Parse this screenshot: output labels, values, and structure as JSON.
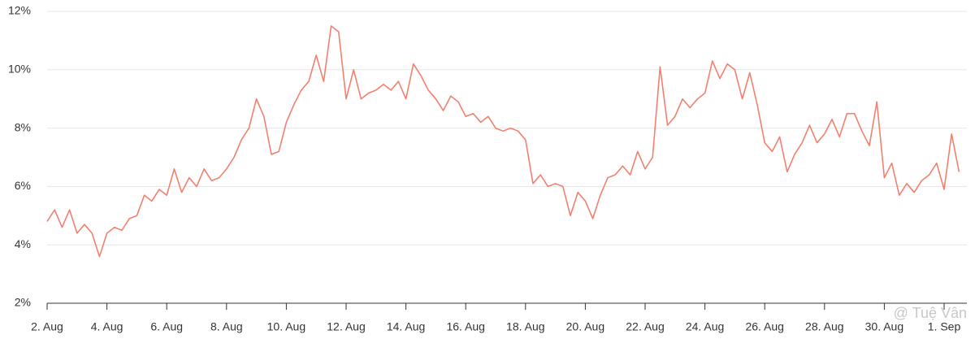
{
  "chart_data": {
    "type": "line",
    "categories": [
      "2. Aug",
      null,
      null,
      null,
      null,
      null,
      null,
      null,
      "4. Aug",
      null,
      null,
      null,
      null,
      null,
      null,
      null,
      "6. Aug",
      null,
      null,
      null,
      null,
      null,
      null,
      null,
      "8. Aug",
      null,
      null,
      null,
      null,
      null,
      null,
      null,
      "10. Aug",
      null,
      null,
      null,
      null,
      null,
      null,
      null,
      "12. Aug",
      null,
      null,
      null,
      null,
      null,
      null,
      null,
      "14. Aug",
      null,
      null,
      null,
      null,
      null,
      null,
      null,
      "16. Aug",
      null,
      null,
      null,
      null,
      null,
      null,
      null,
      "18. Aug",
      null,
      null,
      null,
      null,
      null,
      null,
      null,
      "20. Aug",
      null,
      null,
      null,
      null,
      null,
      null,
      null,
      "22. Aug",
      null,
      null,
      null,
      null,
      null,
      null,
      null,
      "24. Aug",
      null,
      null,
      null,
      null,
      null,
      null,
      null,
      "26. Aug",
      null,
      null,
      null,
      null,
      null,
      null,
      null,
      "28. Aug",
      null,
      null,
      null,
      null,
      null,
      null,
      null,
      "30. Aug",
      null,
      null,
      null,
      null,
      null,
      null,
      null,
      "1. Sep",
      null,
      null
    ],
    "values": [
      4.8,
      5.2,
      4.6,
      5.2,
      4.4,
      4.7,
      4.4,
      3.6,
      4.4,
      4.6,
      4.5,
      4.9,
      5.0,
      5.7,
      5.5,
      5.9,
      5.7,
      6.6,
      5.8,
      6.3,
      6.0,
      6.6,
      6.2,
      6.3,
      6.6,
      7.0,
      7.6,
      8.0,
      9.0,
      8.4,
      7.1,
      7.2,
      8.2,
      8.8,
      9.3,
      9.6,
      10.5,
      9.6,
      11.5,
      11.3,
      9.0,
      10.0,
      9.0,
      9.2,
      9.3,
      9.5,
      9.3,
      9.6,
      9.0,
      10.2,
      9.8,
      9.3,
      9.0,
      8.6,
      9.1,
      8.9,
      8.4,
      8.5,
      8.2,
      8.4,
      8.0,
      7.9,
      8.0,
      7.9,
      7.6,
      6.1,
      6.4,
      6.0,
      6.1,
      6.0,
      5.0,
      5.8,
      5.5,
      4.9,
      5.7,
      6.3,
      6.4,
      6.7,
      6.4,
      7.2,
      6.6,
      7.0,
      10.1,
      8.1,
      8.4,
      9.0,
      8.7,
      9.0,
      9.2,
      10.3,
      9.7,
      10.2,
      10.0,
      9.0,
      9.9,
      8.8,
      7.5,
      7.2,
      7.7,
      6.5,
      7.1,
      7.5,
      8.1,
      7.5,
      7.8,
      8.3,
      7.7,
      8.5,
      8.5,
      7.9,
      7.4,
      8.9,
      6.3,
      6.8,
      5.7,
      6.1,
      5.8,
      6.2,
      6.4,
      6.8,
      5.9,
      7.8,
      6.5
    ],
    "color": "#f2806f",
    "ylim": [
      2,
      12
    ],
    "yticks": [
      {
        "value": 2,
        "label": "2%"
      },
      {
        "value": 4,
        "label": "4%"
      },
      {
        "value": 6,
        "label": "6%"
      },
      {
        "value": 8,
        "label": "8%"
      },
      {
        "value": 10,
        "label": "10%"
      },
      {
        "value": 12,
        "label": "12%"
      }
    ],
    "grid": true,
    "watermark": "@ Tuệ Vân"
  }
}
